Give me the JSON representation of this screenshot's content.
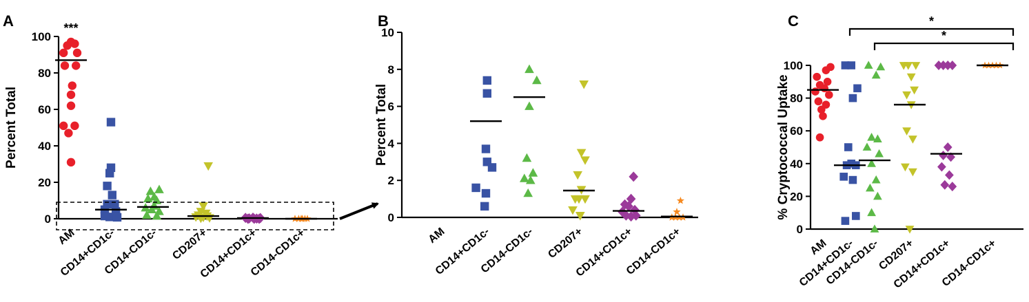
{
  "figure": {
    "panels": [
      {
        "letter": "A",
        "ylabel": "Percent Total",
        "annotation": "***",
        "note": "dashed inset box highlights the 0-10 range, expanded in panel B"
      },
      {
        "letter": "B",
        "ylabel": "Percent Total"
      },
      {
        "letter": "C",
        "ylabel": "% Cryptococcal Uptake",
        "sig_labels": [
          "*",
          "*"
        ]
      }
    ]
  },
  "chart_data": [
    {
      "type": "scatter",
      "panel": "A",
      "title": "",
      "ylabel": "Percent Total",
      "ylim": [
        0,
        100
      ],
      "yticks": [
        0,
        20,
        40,
        60,
        80,
        100
      ],
      "categories": [
        "AM",
        "CD14+CD1c-",
        "CD14-CD1c-",
        "CD207+",
        "CD14+CD1c+",
        "CD14-CD1c+"
      ],
      "annotations": [
        {
          "category": "AM",
          "text": "***"
        }
      ],
      "series": [
        {
          "name": "AM",
          "marker": "circle",
          "color": "#e8202a",
          "mean": 87,
          "points": [
            [
              -0.6,
              91
            ],
            [
              -0.3,
              95
            ],
            [
              0,
              97
            ],
            [
              0.3,
              96
            ],
            [
              0.5,
              91
            ],
            [
              -0.5,
              84
            ],
            [
              0.4,
              84
            ],
            [
              0.1,
              73
            ],
            [
              0,
              68
            ],
            [
              0,
              62
            ],
            [
              -0.6,
              51
            ],
            [
              0.3,
              51
            ],
            [
              -0.2,
              47
            ],
            [
              0,
              31
            ]
          ]
        },
        {
          "name": "CD14+CD1c-",
          "marker": "square",
          "color": "#3953a4",
          "mean": 5,
          "points": [
            [
              0,
              53
            ],
            [
              0,
              28
            ],
            [
              -0.1,
              25
            ],
            [
              -0.3,
              18
            ],
            [
              0.1,
              13
            ],
            [
              -0.3,
              8
            ],
            [
              0.3,
              8
            ],
            [
              -0.5,
              5
            ],
            [
              0.4,
              4
            ],
            [
              -0.5,
              1.5
            ],
            [
              -0.1,
              1
            ],
            [
              0.5,
              0.8
            ]
          ]
        },
        {
          "name": "CD14-CD1c-",
          "marker": "triangle-up",
          "color": "#5cb947",
          "mean": 6.5,
          "points": [
            [
              0.5,
              16
            ],
            [
              -0.2,
              15
            ],
            [
              0.1,
              12
            ],
            [
              -0.4,
              11
            ],
            [
              0.3,
              10
            ],
            [
              -0.6,
              6
            ],
            [
              0.1,
              7
            ],
            [
              -0.1,
              5
            ],
            [
              0.5,
              4
            ],
            [
              -0.5,
              2
            ],
            [
              0.3,
              1.5
            ]
          ]
        },
        {
          "name": "CD207+",
          "marker": "triangle-down",
          "color": "#c3c32a",
          "mean": 1.5,
          "points": [
            [
              0.4,
              29
            ],
            [
              0,
              7
            ],
            [
              -0.2,
              4
            ],
            [
              0.2,
              3
            ],
            [
              -0.4,
              2
            ],
            [
              0.3,
              1.5
            ],
            [
              -0.6,
              1
            ],
            [
              0,
              0.8
            ],
            [
              0.5,
              0.5
            ],
            [
              -0.2,
              0.3
            ]
          ]
        },
        {
          "name": "CD14+CD1c+",
          "marker": "diamond",
          "color": "#9b3a9a",
          "mean": 0.4,
          "points": [
            [
              -0.6,
              0.5
            ],
            [
              -0.3,
              0.2
            ],
            [
              0,
              0.6
            ],
            [
              0.3,
              0.1
            ],
            [
              0.6,
              0.4
            ],
            [
              -0.4,
              0
            ],
            [
              0.1,
              0
            ],
            [
              0.5,
              0
            ]
          ]
        },
        {
          "name": "CD14-CD1c+",
          "marker": "star",
          "color": "#f6891f",
          "mean": 0,
          "points": [
            [
              -0.5,
              0
            ],
            [
              -0.2,
              0
            ],
            [
              0.1,
              0
            ],
            [
              0.3,
              0
            ],
            [
              0.5,
              0
            ],
            [
              0,
              0
            ]
          ]
        }
      ]
    },
    {
      "type": "scatter",
      "panel": "B",
      "title": "",
      "ylabel": "Percent Total",
      "ylim": [
        0,
        10
      ],
      "yticks": [
        0,
        2,
        4,
        6,
        8,
        10
      ],
      "categories": [
        "AM",
        "CD14+CD1c-",
        "CD14-CD1c-",
        "CD207+",
        "CD14+CD1c+",
        "CD14-CD1c+"
      ],
      "series": [
        {
          "name": "AM",
          "marker": "circle",
          "color": "#e8202a",
          "mean": null,
          "points": []
        },
        {
          "name": "CD14+CD1c-",
          "marker": "square",
          "color": "#3953a4",
          "mean": 5.2,
          "points": [
            [
              0.1,
              7.4
            ],
            [
              0.1,
              6.7
            ],
            [
              0,
              3.7
            ],
            [
              -0.8,
              1.6
            ],
            [
              0,
              1.3
            ],
            [
              -0.1,
              0.6
            ],
            [
              0.1,
              3.0
            ],
            [
              0.5,
              2.7
            ]
          ]
        },
        {
          "name": "CD14-CD1c-",
          "marker": "triangle-up",
          "color": "#5cb947",
          "mean": 6.5,
          "points": [
            [
              0,
              8.0
            ],
            [
              0.6,
              7.4
            ],
            [
              0,
              6.0
            ],
            [
              -0.2,
              3.2
            ],
            [
              0.3,
              2.4
            ],
            [
              -0.4,
              2.1
            ],
            [
              0.1,
              2.0
            ],
            [
              -0.1,
              1.3
            ]
          ]
        },
        {
          "name": "CD207+",
          "marker": "triangle-down",
          "color": "#c3c32a",
          "mean": 1.45,
          "points": [
            [
              0.4,
              7.2
            ],
            [
              0.2,
              3.5
            ],
            [
              0.5,
              3.1
            ],
            [
              -0.1,
              2.3
            ],
            [
              0.2,
              1.5
            ],
            [
              -0.3,
              1.0
            ],
            [
              0,
              1.0
            ],
            [
              0.5,
              1.0
            ],
            [
              -0.5,
              0.4
            ],
            [
              0.1,
              0.1
            ]
          ]
        },
        {
          "name": "CD14+CD1c+",
          "marker": "diamond",
          "color": "#9b3a9a",
          "mean": 0.35,
          "points": [
            [
              0.4,
              2.2
            ],
            [
              0.2,
              1.0
            ],
            [
              -0.3,
              0.7
            ],
            [
              0,
              0.6
            ],
            [
              0.5,
              0.4
            ],
            [
              -0.5,
              0.3
            ],
            [
              -0.2,
              0.1
            ],
            [
              0.2,
              0.05
            ],
            [
              0.6,
              0.1
            ]
          ]
        },
        {
          "name": "CD14-CD1c+",
          "marker": "star",
          "color": "#f6891f",
          "mean": 0.05,
          "points": [
            [
              0.3,
              0.9
            ],
            [
              0,
              0.3
            ],
            [
              -0.4,
              0
            ],
            [
              -0.1,
              0
            ],
            [
              0.2,
              0
            ],
            [
              0.5,
              0
            ]
          ]
        }
      ]
    },
    {
      "type": "scatter",
      "panel": "C",
      "title": "",
      "ylabel": "% Cryptococcal Uptake",
      "ylim": [
        0,
        100
      ],
      "yticks": [
        0,
        20,
        40,
        60,
        80,
        100
      ],
      "categories": [
        "AM",
        "CD14+CD1c-",
        "CD14-CD1c-",
        "CD207+",
        "CD14+CD1c+",
        "CD14-CD1c+"
      ],
      "significance": [
        {
          "from": "CD14+CD1c-",
          "to": "CD14-CD1c+",
          "label": "*"
        },
        {
          "from": "CD14-CD1c-",
          "to": "CD14-CD1c+",
          "label": "*"
        }
      ],
      "series": [
        {
          "name": "AM",
          "marker": "circle",
          "color": "#e8202a",
          "mean": 85,
          "points": [
            [
              0.5,
              99
            ],
            [
              0.2,
              97
            ],
            [
              -0.4,
              93
            ],
            [
              0.3,
              90
            ],
            [
              -0.2,
              88
            ],
            [
              0.1,
              86
            ],
            [
              -0.5,
              84
            ],
            [
              0.4,
              82
            ],
            [
              -0.3,
              78
            ],
            [
              0.2,
              76
            ],
            [
              -0.1,
              73
            ],
            [
              0,
              69
            ],
            [
              -0.2,
              56
            ]
          ]
        },
        {
          "name": "CD14+CD1c-",
          "marker": "square",
          "color": "#3953a4",
          "mean": 39,
          "points": [
            [
              -0.3,
              100
            ],
            [
              0.1,
              100
            ],
            [
              0.5,
              86
            ],
            [
              0.2,
              80
            ],
            [
              -0.1,
              50
            ],
            [
              0.1,
              40
            ],
            [
              -0.2,
              39
            ],
            [
              0.4,
              39
            ],
            [
              -0.4,
              32
            ],
            [
              0.2,
              30
            ],
            [
              0.4,
              8
            ],
            [
              -0.3,
              5
            ]
          ]
        },
        {
          "name": "CD14-CD1c-",
          "marker": "triangle-up",
          "color": "#5cb947",
          "mean": 42,
          "points": [
            [
              -0.4,
              100
            ],
            [
              0.4,
              99
            ],
            [
              0.1,
              94
            ],
            [
              -0.2,
              56
            ],
            [
              0.2,
              55
            ],
            [
              -0.5,
              50
            ],
            [
              0.3,
              46
            ],
            [
              -0.2,
              40
            ],
            [
              0.1,
              30
            ],
            [
              -0.3,
              25
            ],
            [
              0.2,
              20
            ],
            [
              -0.2,
              10
            ],
            [
              0,
              0
            ]
          ]
        },
        {
          "name": "CD207+",
          "marker": "triangle-down",
          "color": "#c3c32a",
          "mean": 76,
          "points": [
            [
              -0.4,
              100
            ],
            [
              -0.1,
              100
            ],
            [
              0.4,
              100
            ],
            [
              0.1,
              93
            ],
            [
              0.3,
              85
            ],
            [
              -0.2,
              82
            ],
            [
              0.1,
              76
            ],
            [
              -0.2,
              60
            ],
            [
              0.2,
              55
            ],
            [
              -0.3,
              38
            ],
            [
              0.2,
              35
            ],
            [
              0,
              0
            ]
          ]
        },
        {
          "name": "CD14+CD1c+",
          "marker": "diamond",
          "color": "#9b3a9a",
          "mean": 46,
          "points": [
            [
              -0.5,
              100
            ],
            [
              -0.2,
              100
            ],
            [
              0.1,
              100
            ],
            [
              0.4,
              100
            ],
            [
              0.1,
              50
            ],
            [
              -0.2,
              45
            ],
            [
              0.3,
              44
            ],
            [
              -0.3,
              38
            ],
            [
              0.2,
              33
            ],
            [
              -0.1,
              27
            ],
            [
              0.4,
              26
            ]
          ]
        },
        {
          "name": "CD14-CD1c+",
          "marker": "star",
          "color": "#f6891f",
          "mean": 100,
          "points": [
            [
              -0.5,
              100
            ],
            [
              -0.25,
              100
            ],
            [
              0,
              100
            ],
            [
              0.25,
              100
            ],
            [
              0.5,
              100
            ]
          ]
        }
      ]
    }
  ]
}
